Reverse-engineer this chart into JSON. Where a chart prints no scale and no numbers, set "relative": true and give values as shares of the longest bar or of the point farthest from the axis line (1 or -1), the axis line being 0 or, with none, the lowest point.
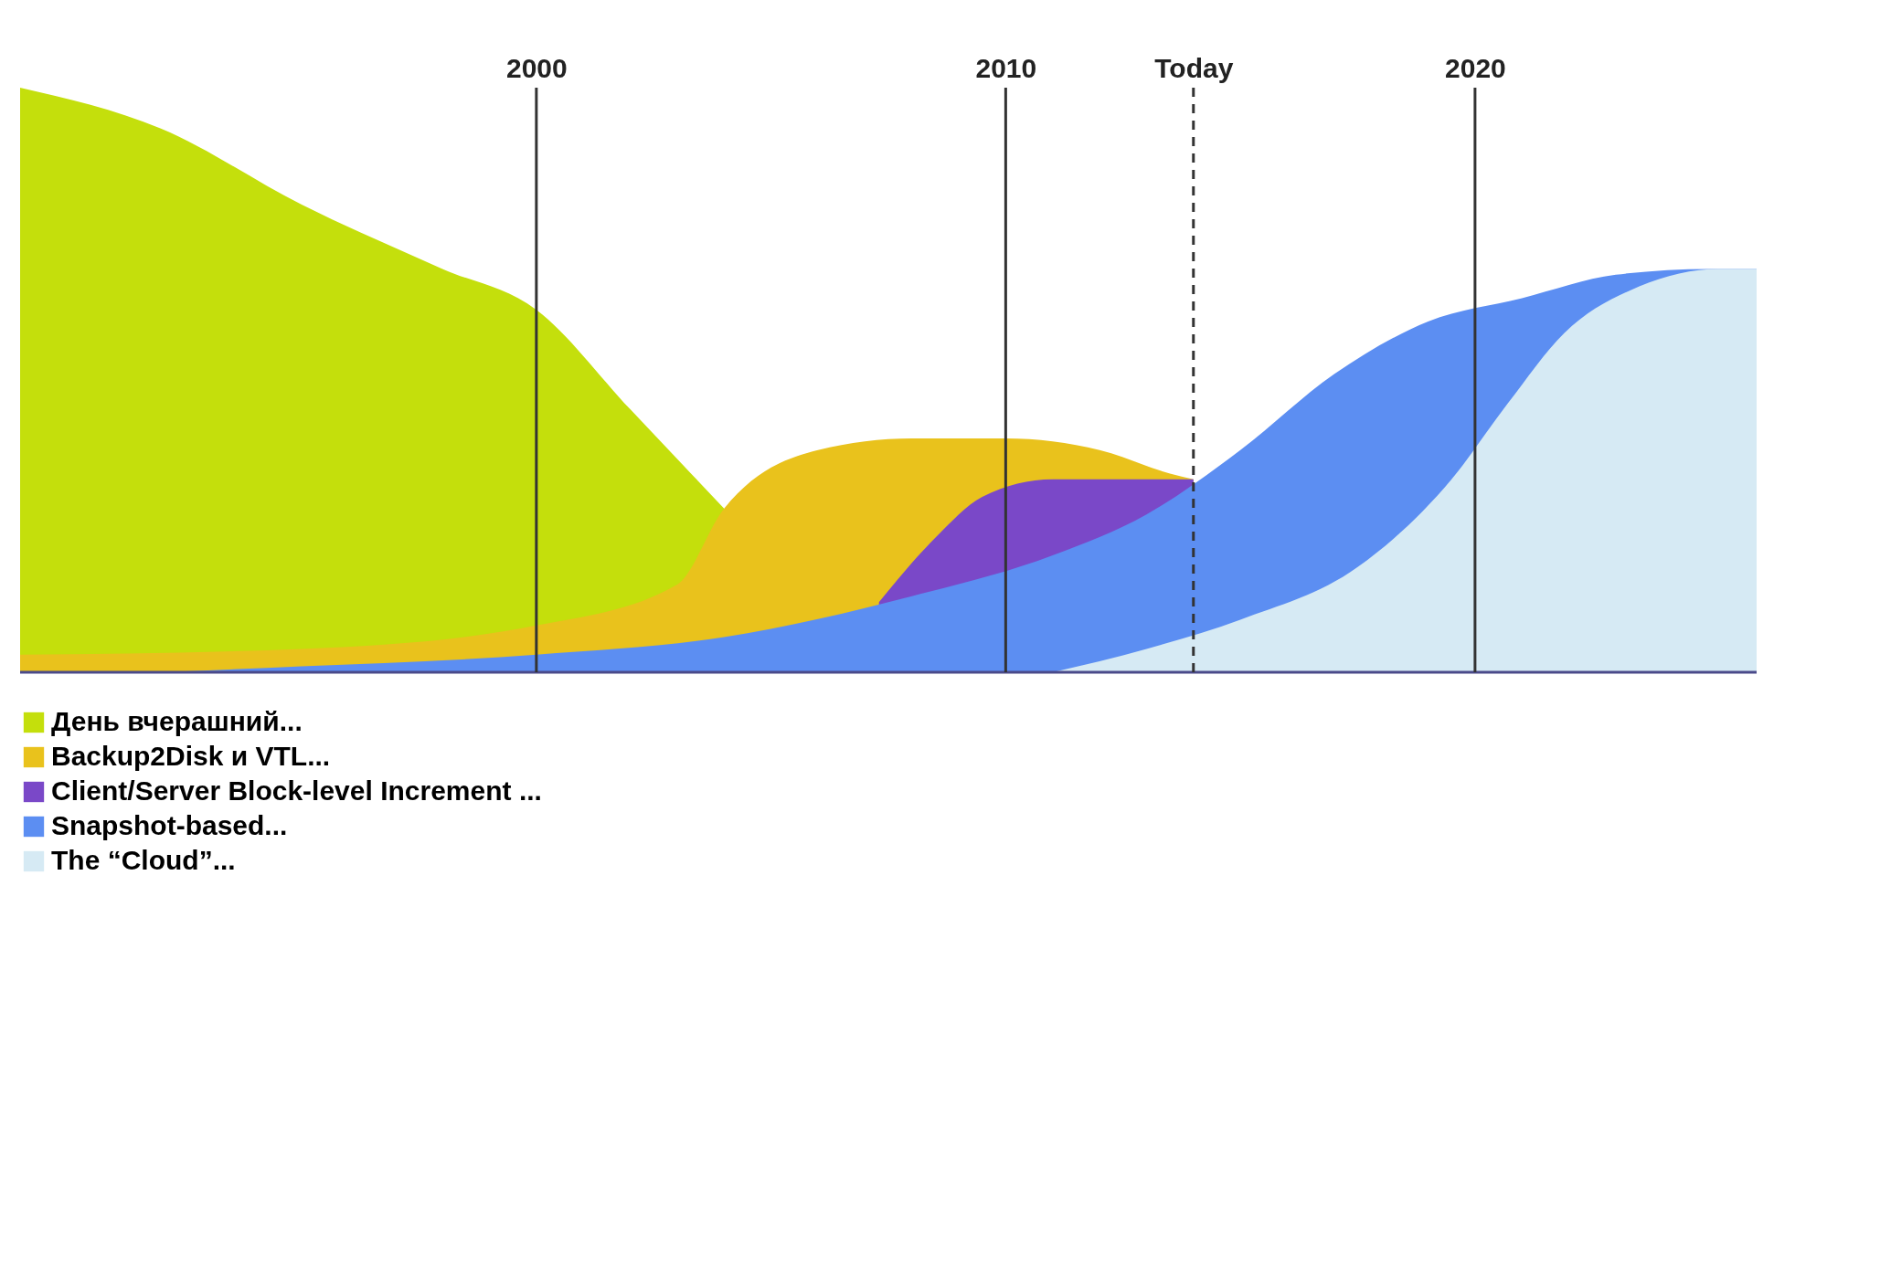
{
  "chart_data": {
    "type": "area",
    "relative": true,
    "xlim": [
      1989,
      2026
    ],
    "xticks": [
      2000,
      2010,
      {
        "value": 2014,
        "label": "Today"
      },
      2020
    ],
    "legend": "bottom",
    "series": [
      {
        "name": "День вчерашний...",
        "color": "#c4df0c",
        "x": [
          1989,
          1992,
          1995,
          1998,
          2000,
          2002,
          2004
        ],
        "values": [
          1.0,
          0.93,
          0.8,
          0.69,
          0.62,
          0.45,
          0.28
        ]
      },
      {
        "name": "Backup2Disk и VTL...",
        "color": "#e9c21c",
        "x": [
          1989,
          1995,
          2000,
          2003,
          2004,
          2006,
          2008,
          2010,
          2012,
          2013.5,
          2014
        ],
        "values": [
          0.03,
          0.04,
          0.08,
          0.15,
          0.28,
          0.38,
          0.4,
          0.4,
          0.38,
          0.34,
          0.33
        ]
      },
      {
        "name": "Client/Server Block-level Increment ...",
        "color": "#7a48c8",
        "x": [
          2007.3,
          2008.5,
          2009.5,
          2011,
          2013,
          2014
        ],
        "values": [
          0.12,
          0.23,
          0.3,
          0.33,
          0.33,
          0.33
        ]
      },
      {
        "name": "Snapshot-based...",
        "color": "#5c8ef2",
        "x": [
          1992,
          1995,
          2000,
          2004,
          2008,
          2011,
          2013,
          2015,
          2017,
          2019,
          2021,
          2023,
          2025,
          2026
        ],
        "values": [
          0,
          0.01,
          0.03,
          0.06,
          0.13,
          0.2,
          0.27,
          0.38,
          0.51,
          0.6,
          0.64,
          0.68,
          0.69,
          0.69
        ]
      },
      {
        "name": "The “Cloud”...",
        "color": "#d6eaf4",
        "x": [
          2011,
          2013,
          2015,
          2017.5,
          2019.5,
          2020.7,
          2021.9,
          2023.5,
          2025.2,
          2026
        ],
        "values": [
          0,
          0.04,
          0.09,
          0.18,
          0.33,
          0.46,
          0.58,
          0.66,
          0.69,
          0.69
        ]
      }
    ],
    "ref_lines": [
      {
        "axis": "x",
        "value": 2000,
        "color": "#333333",
        "line_style": "solid"
      },
      {
        "axis": "x",
        "value": 2010,
        "color": "#333333",
        "line_style": "solid"
      },
      {
        "axis": "x",
        "value": 2014,
        "color": "#333333",
        "line_style": "dashed"
      },
      {
        "axis": "x",
        "value": 2020,
        "color": "#333333",
        "line_style": "solid"
      }
    ]
  }
}
